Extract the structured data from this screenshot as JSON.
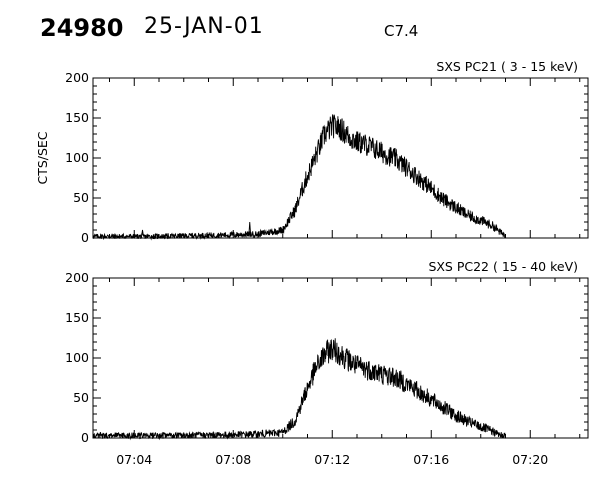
{
  "header": {
    "event_id": "24980",
    "date": "25-JAN-01",
    "flare_class": "C7.4"
  },
  "chart_data": [
    {
      "type": "line",
      "title": "SXS PC21  (  3 - 15 keV)",
      "ylabel": "CTS/SEC",
      "ylim": [
        0,
        200
      ],
      "yticks": [
        0,
        50,
        100,
        150,
        200
      ],
      "xlim": [
        "07:02:20",
        "07:22:20"
      ],
      "grid": false,
      "profile": {
        "x": [
          "07:02:20",
          "07:05:00",
          "07:08:00",
          "07:09:00",
          "07:10:00",
          "07:10:30",
          "07:10:54",
          "07:11:18",
          "07:11:42",
          "07:12:00",
          "07:12:18",
          "07:12:42",
          "07:13:00",
          "07:13:30",
          "07:14:00",
          "07:14:30",
          "07:15:00",
          "07:15:30",
          "07:16:00",
          "07:16:30",
          "07:17:00",
          "07:17:30",
          "07:18:00",
          "07:18:30",
          "07:18:45",
          "07:19:00"
        ],
        "y": [
          2,
          2,
          4,
          5,
          10,
          35,
          70,
          100,
          130,
          140,
          138,
          126,
          120,
          115,
          107,
          100,
          88,
          75,
          62,
          48,
          38,
          28,
          22,
          15,
          8,
          3
        ],
        "noise": 7
      },
      "spikes": [
        {
          "x": "07:04:20",
          "y": 10
        },
        {
          "x": "07:08:40",
          "y": 20
        }
      ]
    },
    {
      "type": "line",
      "title": "SXS PC22  ( 15 - 40 keV)",
      "ylabel": "",
      "ylim": [
        0,
        200
      ],
      "yticks": [
        0,
        50,
        100,
        150,
        200
      ],
      "xlim": [
        "07:02:20",
        "07:22:20"
      ],
      "xticks": [
        "07:04",
        "07:08",
        "07:12",
        "07:16",
        "07:20"
      ],
      "grid": false,
      "profile": {
        "x": [
          "07:02:20",
          "07:05:00",
          "07:08:00",
          "07:09:00",
          "07:10:00",
          "07:10:30",
          "07:10:54",
          "07:11:18",
          "07:11:42",
          "07:12:00",
          "07:12:18",
          "07:12:42",
          "07:13:00",
          "07:13:30",
          "07:14:00",
          "07:14:30",
          "07:15:00",
          "07:15:30",
          "07:16:00",
          "07:16:30",
          "07:17:00",
          "07:17:30",
          "07:18:00",
          "07:18:30",
          "07:18:45",
          "07:19:00"
        ],
        "y": [
          3,
          3,
          4,
          5,
          7,
          22,
          55,
          85,
          105,
          112,
          106,
          96,
          90,
          85,
          80,
          76,
          68,
          58,
          48,
          38,
          28,
          20,
          14,
          8,
          4,
          3
        ],
        "noise": 8
      },
      "spikes": []
    }
  ]
}
